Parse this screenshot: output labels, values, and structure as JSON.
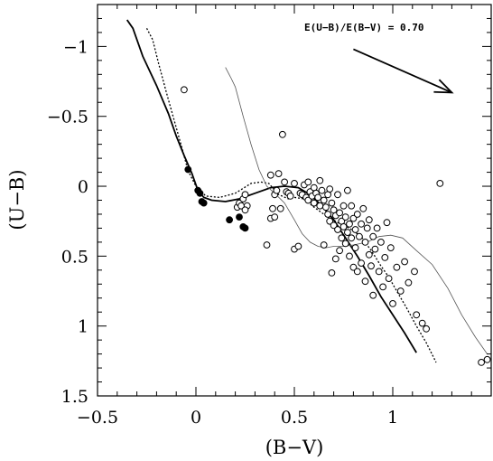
{
  "chart_data": {
    "type": "scatter",
    "xlabel": "(B−V)",
    "ylabel": "(U−B)",
    "xlim": [
      -0.5,
      1.5
    ],
    "ylim": [
      1.5,
      -1.3
    ],
    "y_inverted": true,
    "grid": false,
    "x_ticks": [
      -0.5,
      0,
      0.5,
      1
    ],
    "x_tick_labels": [
      "−0.5",
      "0",
      "0.5",
      "1"
    ],
    "y_ticks": [
      -1,
      -0.5,
      0,
      0.5,
      1,
      1.5
    ],
    "y_tick_labels": [
      "−1",
      "−0.5",
      "0",
      "0.5",
      "1",
      "1.5"
    ],
    "annotation": {
      "text": "E(U−B)/E(B−V) = 0.70",
      "arrow_from": [
        0.8,
        -0.98
      ],
      "arrow_to": [
        1.3,
        -0.67
      ]
    },
    "series": [
      {
        "kind": "line",
        "style": "solid",
        "points": [
          [
            -0.35,
            -1.19
          ],
          [
            -0.32,
            -1.13
          ],
          [
            -0.27,
            -0.93
          ],
          [
            -0.2,
            -0.72
          ],
          [
            -0.14,
            -0.52
          ],
          [
            -0.1,
            -0.36
          ],
          [
            -0.06,
            -0.22
          ],
          [
            -0.02,
            -0.09
          ],
          [
            0.01,
            0.03
          ],
          [
            0.04,
            0.08
          ],
          [
            0.08,
            0.1
          ],
          [
            0.15,
            0.11
          ],
          [
            0.22,
            0.09
          ],
          [
            0.3,
            0.05
          ],
          [
            0.38,
            0.01
          ],
          [
            0.45,
            0.0
          ],
          [
            0.52,
            0.01
          ],
          [
            0.58,
            0.06
          ],
          [
            0.64,
            0.14
          ],
          [
            0.7,
            0.24
          ],
          [
            0.76,
            0.37
          ],
          [
            0.82,
            0.5
          ],
          [
            0.88,
            0.64
          ],
          [
            0.94,
            0.79
          ],
          [
            1.0,
            0.92
          ],
          [
            1.06,
            1.05
          ],
          [
            1.12,
            1.19
          ]
        ]
      },
      {
        "kind": "line",
        "style": "dotted",
        "points": [
          [
            -0.25,
            -1.13
          ],
          [
            -0.22,
            -1.05
          ],
          [
            -0.19,
            -0.88
          ],
          [
            -0.15,
            -0.67
          ],
          [
            -0.11,
            -0.47
          ],
          [
            -0.07,
            -0.27
          ],
          [
            -0.04,
            -0.11
          ],
          [
            0.0,
            0.0
          ],
          [
            0.05,
            0.07
          ],
          [
            0.12,
            0.08
          ],
          [
            0.2,
            0.05
          ],
          [
            0.28,
            -0.02
          ],
          [
            0.33,
            -0.03
          ],
          [
            0.37,
            -0.02
          ],
          [
            0.42,
            0.06
          ],
          [
            0.47,
            0.09
          ],
          [
            0.5,
            0.08
          ],
          [
            0.55,
            0.09
          ],
          [
            0.6,
            0.15
          ],
          [
            0.65,
            0.2
          ],
          [
            0.72,
            0.26
          ],
          [
            0.78,
            0.3
          ],
          [
            0.84,
            0.36
          ],
          [
            0.9,
            0.48
          ],
          [
            0.94,
            0.57
          ],
          [
            0.98,
            0.65
          ],
          [
            1.02,
            0.75
          ],
          [
            1.07,
            0.87
          ],
          [
            1.12,
            1.0
          ],
          [
            1.17,
            1.12
          ],
          [
            1.22,
            1.26
          ]
        ]
      },
      {
        "kind": "line",
        "style": "thin",
        "points": [
          [
            0.15,
            -0.85
          ],
          [
            0.18,
            -0.77
          ],
          [
            0.2,
            -0.71
          ],
          [
            0.24,
            -0.5
          ],
          [
            0.28,
            -0.3
          ],
          [
            0.32,
            -0.12
          ],
          [
            0.36,
            0.0
          ],
          [
            0.4,
            0.05
          ],
          [
            0.45,
            0.12
          ],
          [
            0.5,
            0.24
          ],
          [
            0.54,
            0.34
          ],
          [
            0.58,
            0.4
          ],
          [
            0.62,
            0.43
          ],
          [
            0.66,
            0.44
          ],
          [
            0.7,
            0.43
          ],
          [
            0.75,
            0.43
          ],
          [
            0.8,
            0.42
          ],
          [
            0.87,
            0.4
          ],
          [
            0.93,
            0.36
          ],
          [
            0.99,
            0.35
          ],
          [
            1.05,
            0.37
          ],
          [
            1.12,
            0.46
          ],
          [
            1.2,
            0.56
          ],
          [
            1.28,
            0.73
          ],
          [
            1.35,
            0.92
          ],
          [
            1.42,
            1.08
          ],
          [
            1.48,
            1.2
          ]
        ]
      },
      {
        "kind": "points",
        "marker": "filled",
        "points": [
          [
            -0.04,
            -0.12
          ],
          [
            0.01,
            0.03
          ],
          [
            0.02,
            0.05
          ],
          [
            0.03,
            0.11
          ],
          [
            0.04,
            0.12
          ],
          [
            0.17,
            0.24
          ],
          [
            0.22,
            0.22
          ],
          [
            0.24,
            0.29
          ],
          [
            0.25,
            0.3
          ]
        ]
      },
      {
        "kind": "points",
        "marker": "open",
        "points": [
          [
            -0.06,
            -0.69
          ],
          [
            0.44,
            -0.37
          ],
          [
            1.24,
            -0.02
          ],
          [
            1.45,
            1.26
          ],
          [
            1.48,
            1.24
          ],
          [
            0.21,
            0.15
          ],
          [
            0.22,
            0.12
          ],
          [
            0.23,
            0.14
          ],
          [
            0.24,
            0.09
          ],
          [
            0.25,
            0.06
          ],
          [
            0.26,
            0.14
          ],
          [
            0.25,
            0.17
          ],
          [
            0.36,
            0.42
          ],
          [
            0.38,
            -0.08
          ],
          [
            0.38,
            0.23
          ],
          [
            0.39,
            0.16
          ],
          [
            0.4,
            0.22
          ],
          [
            0.4,
            0.06
          ],
          [
            0.41,
            0.03
          ],
          [
            0.42,
            -0.09
          ],
          [
            0.43,
            0.16
          ],
          [
            0.45,
            -0.03
          ],
          [
            0.46,
            0.04
          ],
          [
            0.47,
            0.05
          ],
          [
            0.48,
            0.07
          ],
          [
            0.5,
            -0.02
          ],
          [
            0.5,
            0.45
          ],
          [
            0.52,
            0.43
          ],
          [
            0.53,
            0.05
          ],
          [
            0.54,
            0.06
          ],
          [
            0.55,
            -0.01
          ],
          [
            0.56,
            0.08
          ],
          [
            0.57,
            -0.03
          ],
          [
            0.57,
            0.1
          ],
          [
            0.58,
            0.04
          ],
          [
            0.59,
            0.07
          ],
          [
            0.6,
            0.01
          ],
          [
            0.6,
            0.12
          ],
          [
            0.61,
            0.05
          ],
          [
            0.62,
            0.08
          ],
          [
            0.63,
            -0.04
          ],
          [
            0.63,
            0.14
          ],
          [
            0.64,
            0.03
          ],
          [
            0.65,
            0.1
          ],
          [
            0.65,
            0.42
          ],
          [
            0.66,
            0.15
          ],
          [
            0.67,
            0.06
          ],
          [
            0.67,
            0.2
          ],
          [
            0.68,
            0.02
          ],
          [
            0.68,
            0.25
          ],
          [
            0.69,
            0.12
          ],
          [
            0.69,
            0.62
          ],
          [
            0.7,
            0.17
          ],
          [
            0.7,
            0.28
          ],
          [
            0.71,
            0.21
          ],
          [
            0.71,
            0.52
          ],
          [
            0.72,
            0.06
          ],
          [
            0.72,
            0.31
          ],
          [
            0.73,
            0.19
          ],
          [
            0.73,
            0.46
          ],
          [
            0.74,
            0.25
          ],
          [
            0.74,
            0.37
          ],
          [
            0.75,
            0.14
          ],
          [
            0.75,
            0.29
          ],
          [
            0.76,
            0.41
          ],
          [
            0.76,
            0.22
          ],
          [
            0.77,
            0.33
          ],
          [
            0.77,
            0.03
          ],
          [
            0.78,
            0.27
          ],
          [
            0.78,
            0.5
          ],
          [
            0.79,
            0.14
          ],
          [
            0.79,
            0.37
          ],
          [
            0.8,
            0.23
          ],
          [
            0.8,
            0.58
          ],
          [
            0.81,
            0.31
          ],
          [
            0.81,
            0.44
          ],
          [
            0.82,
            0.2
          ],
          [
            0.82,
            0.61
          ],
          [
            0.83,
            0.36
          ],
          [
            0.84,
            0.27
          ],
          [
            0.84,
            0.55
          ],
          [
            0.85,
            0.16
          ],
          [
            0.86,
            0.4
          ],
          [
            0.86,
            0.68
          ],
          [
            0.87,
            0.3
          ],
          [
            0.88,
            0.49
          ],
          [
            0.88,
            0.24
          ],
          [
            0.89,
            0.57
          ],
          [
            0.9,
            0.36
          ],
          [
            0.9,
            0.78
          ],
          [
            0.91,
            0.45
          ],
          [
            0.92,
            0.3
          ],
          [
            0.93,
            0.61
          ],
          [
            0.94,
            0.4
          ],
          [
            0.95,
            0.72
          ],
          [
            0.96,
            0.51
          ],
          [
            0.97,
            0.26
          ],
          [
            0.98,
            0.66
          ],
          [
            0.99,
            0.44
          ],
          [
            1.0,
            0.84
          ],
          [
            1.02,
            0.58
          ],
          [
            1.04,
            0.75
          ],
          [
            1.06,
            0.54
          ],
          [
            1.08,
            0.69
          ],
          [
            1.11,
            0.61
          ],
          [
            1.12,
            0.92
          ],
          [
            1.15,
            0.98
          ],
          [
            1.17,
            1.02
          ]
        ]
      }
    ]
  }
}
